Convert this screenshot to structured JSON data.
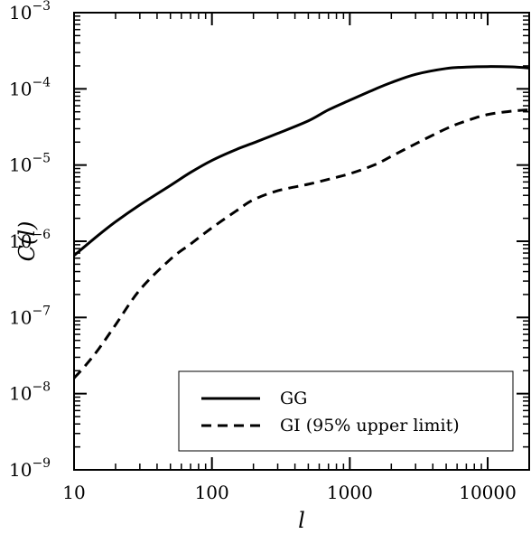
{
  "chart_data": {
    "type": "line",
    "xscale": "log",
    "yscale": "log",
    "xlim": [
      10,
      20000
    ],
    "ylim": [
      1e-09,
      0.001
    ],
    "xlabel": "l",
    "ylabel": "C(l)",
    "grid": false,
    "legend_position": "bottom-right",
    "x_ticks": [
      {
        "value": 10,
        "label": "10"
      },
      {
        "value": 100,
        "label": "100"
      },
      {
        "value": 1000,
        "label": "1000"
      },
      {
        "value": 10000,
        "label": "10000"
      }
    ],
    "y_ticks": [
      {
        "value": 1e-09,
        "base": "10",
        "exp": "−9"
      },
      {
        "value": 1e-08,
        "base": "10",
        "exp": "−8"
      },
      {
        "value": 1e-07,
        "base": "10",
        "exp": "−7"
      },
      {
        "value": 1e-06,
        "base": "10",
        "exp": "−6"
      },
      {
        "value": 1e-05,
        "base": "10",
        "exp": "−5"
      },
      {
        "value": 0.0001,
        "base": "10",
        "exp": "−4"
      },
      {
        "value": 0.001,
        "base": "10",
        "exp": "−3"
      }
    ],
    "series": [
      {
        "name": "GG",
        "style": "solid",
        "color": "#000000",
        "x": [
          10,
          15,
          20,
          30,
          50,
          70,
          100,
          150,
          200,
          300,
          500,
          700,
          1000,
          1500,
          2000,
          3000,
          5000,
          7000,
          10000,
          15000,
          20000
        ],
        "y": [
          6.5e-07,
          1.2e-06,
          1.8e-06,
          3e-06,
          5.4e-06,
          8e-06,
          1.15e-05,
          1.6e-05,
          1.95e-05,
          2.6e-05,
          3.8e-05,
          5.3e-05,
          7.1e-05,
          9.8e-05,
          0.000121,
          0.000155,
          0.000185,
          0.000193,
          0.000196,
          0.000194,
          0.000188
        ]
      },
      {
        "name": "GI (95% upper limit)",
        "style": "dashed",
        "color": "#000000",
        "x": [
          10,
          12,
          15,
          20,
          30,
          50,
          70,
          100,
          150,
          200,
          300,
          500,
          700,
          1000,
          1500,
          2000,
          3000,
          5000,
          7000,
          10000,
          15000,
          20000
        ],
        "y": [
          1.6e-08,
          2.3e-08,
          3.8e-08,
          8e-08,
          2.3e-07,
          5.8e-07,
          9.2e-07,
          1.5e-06,
          2.5e-06,
          3.5e-06,
          4.6e-06,
          5.6e-06,
          6.5e-06,
          7.7e-06,
          1e-05,
          1.3e-05,
          1.9e-05,
          3e-05,
          3.8e-05,
          4.6e-05,
          5.1e-05,
          5.3e-05
        ]
      }
    ]
  }
}
